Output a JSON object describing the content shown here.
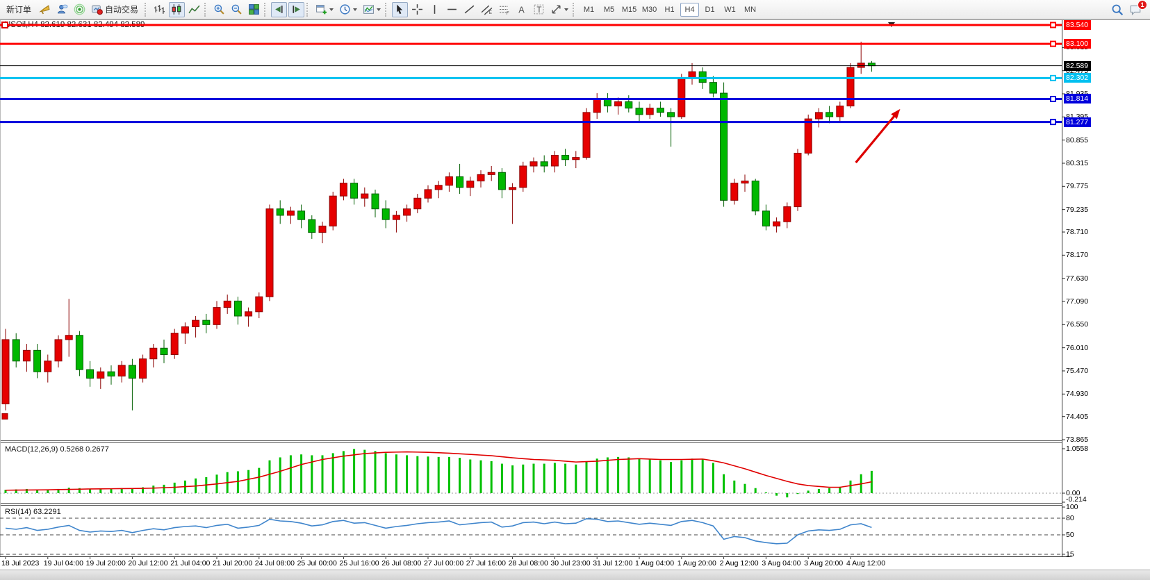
{
  "toolbar": {
    "groups": [
      {
        "name": "trade-group",
        "items": [
          {
            "name": "new-order-button",
            "label": "新订单"
          },
          {
            "name": "horn-button",
            "icon": "horn"
          },
          {
            "name": "community-button",
            "icon": "person"
          },
          {
            "name": "signals-button",
            "icon": "signal"
          },
          {
            "name": "autotrading-button",
            "icon": "autotrade",
            "label": "自动交易"
          }
        ]
      },
      {
        "name": "chart-type-group",
        "items": [
          {
            "name": "bar-chart-button",
            "icon": "bars"
          },
          {
            "name": "candlestick-button",
            "icon": "candles",
            "active": true
          },
          {
            "name": "line-chart-button",
            "icon": "line"
          }
        ]
      },
      {
        "name": "zoom-group",
        "items": [
          {
            "name": "zoom-in-button",
            "icon": "zoomin"
          },
          {
            "name": "zoom-out-button",
            "icon": "zoomout"
          },
          {
            "name": "tile-windows-button",
            "icon": "tile"
          }
        ]
      },
      {
        "name": "scroll-group",
        "items": [
          {
            "name": "auto-scroll-button",
            "icon": "autoscroll",
            "active": true
          },
          {
            "name": "chart-shift-button",
            "icon": "chartshift",
            "active": true
          }
        ]
      },
      {
        "name": "windows-group",
        "items": [
          {
            "name": "new-chart-button",
            "icon": "newchart",
            "caret": true
          },
          {
            "name": "periods-button",
            "icon": "clock",
            "caret": true
          },
          {
            "name": "templates-button",
            "icon": "template",
            "caret": true
          }
        ]
      },
      {
        "name": "objects-group",
        "items": [
          {
            "name": "cursor-button",
            "icon": "cursor",
            "active": true
          },
          {
            "name": "crosshair-button",
            "icon": "crosshair"
          },
          {
            "name": "vertical-line-button",
            "icon": "vline"
          },
          {
            "name": "horizontal-line-button",
            "icon": "hline"
          },
          {
            "name": "trendline-button",
            "icon": "trend"
          },
          {
            "name": "channel-button",
            "icon": "channel"
          },
          {
            "name": "fibonacci-button",
            "icon": "fibo"
          },
          {
            "name": "text-button",
            "icon": "textA"
          },
          {
            "name": "text-label-button",
            "icon": "textT"
          },
          {
            "name": "arrows-button",
            "icon": "shapes",
            "caret": true
          }
        ]
      }
    ],
    "timeframes": {
      "items": [
        "M1",
        "M5",
        "M15",
        "M30",
        "H1",
        "H4",
        "D1",
        "W1",
        "MN"
      ],
      "active": "H4"
    },
    "right": [
      {
        "name": "search-button",
        "icon": "search"
      },
      {
        "name": "notifications-button",
        "icon": "chat",
        "badge": "1"
      }
    ]
  },
  "chart": {
    "title": "USOil,H4 82.619 82.631 82.494 82.589",
    "macd_label": "MACD(12,26,9) 0.5268 0.2677",
    "rsi_label": "RSI(14) 63.2291"
  },
  "chart_data": {
    "type": "candlestick",
    "symbol": "USOil",
    "period": "H4",
    "ohlc_current": {
      "open": 82.619,
      "high": 82.631,
      "low": 82.494,
      "close": 82.589
    },
    "current_price": 82.589,
    "up_color": "#e60000",
    "down_color": "#00b800",
    "price_axis": {
      "visible_max": 83.653,
      "visible_min": 73.849,
      "ticks": [
        83.015,
        82.475,
        81.935,
        81.395,
        80.855,
        80.315,
        79.775,
        79.235,
        78.71,
        78.17,
        77.63,
        77.09,
        76.55,
        76.01,
        75.47,
        74.93,
        74.405,
        73.865
      ]
    },
    "hlines": [
      {
        "price": 83.54,
        "label": "83.540",
        "color": "#ff0000",
        "width": 3
      },
      {
        "price": 83.1,
        "label": "83.100",
        "color": "#ff0000",
        "width": 3
      },
      {
        "price": 82.302,
        "label": "82.302",
        "color": "#00c0f0",
        "width": 3
      },
      {
        "price": 81.814,
        "label": "81.814",
        "color": "#0000dc",
        "width": 3
      },
      {
        "price": 81.277,
        "label": "81.277",
        "color": "#0000dc",
        "width": 3
      }
    ],
    "candles": [
      [
        74.7,
        76.45,
        74.55,
        76.2
      ],
      [
        76.2,
        76.35,
        75.55,
        75.7
      ],
      [
        75.7,
        76.1,
        75.45,
        75.95
      ],
      [
        75.95,
        76.1,
        75.3,
        75.45
      ],
      [
        75.45,
        75.85,
        75.2,
        75.7
      ],
      [
        75.7,
        76.3,
        75.55,
        76.2
      ],
      [
        76.2,
        77.15,
        75.8,
        76.3
      ],
      [
        76.3,
        76.4,
        75.35,
        75.5
      ],
      [
        75.5,
        75.7,
        75.1,
        75.3
      ],
      [
        75.3,
        75.55,
        75.05,
        75.45
      ],
      [
        75.45,
        75.6,
        75.15,
        75.35
      ],
      [
        75.35,
        75.7,
        75.2,
        75.6
      ],
      [
        75.6,
        75.75,
        74.55,
        75.3
      ],
      [
        75.3,
        75.85,
        75.2,
        75.75
      ],
      [
        75.75,
        76.1,
        75.55,
        76.0
      ],
      [
        76.0,
        76.2,
        75.65,
        75.85
      ],
      [
        75.85,
        76.45,
        75.75,
        76.35
      ],
      [
        76.35,
        76.6,
        76.1,
        76.5
      ],
      [
        76.5,
        76.75,
        76.25,
        76.65
      ],
      [
        76.65,
        76.8,
        76.35,
        76.55
      ],
      [
        76.55,
        77.1,
        76.45,
        76.95
      ],
      [
        76.95,
        77.25,
        76.8,
        77.1
      ],
      [
        77.1,
        77.2,
        76.55,
        76.75
      ],
      [
        76.75,
        76.95,
        76.5,
        76.85
      ],
      [
        76.85,
        77.3,
        76.7,
        77.2
      ],
      [
        77.2,
        79.35,
        77.1,
        79.25
      ],
      [
        79.25,
        79.45,
        78.9,
        79.1
      ],
      [
        79.1,
        79.3,
        78.9,
        79.2
      ],
      [
        79.2,
        79.35,
        78.8,
        79.0
      ],
      [
        79.0,
        79.1,
        78.55,
        78.7
      ],
      [
        78.7,
        78.95,
        78.45,
        78.85
      ],
      [
        78.85,
        79.65,
        78.75,
        79.55
      ],
      [
        79.55,
        79.95,
        79.45,
        79.85
      ],
      [
        79.85,
        79.95,
        79.35,
        79.5
      ],
      [
        79.5,
        79.75,
        79.3,
        79.6
      ],
      [
        79.6,
        79.7,
        79.05,
        79.25
      ],
      [
        79.25,
        79.45,
        78.8,
        79.0
      ],
      [
        79.0,
        79.2,
        78.7,
        79.1
      ],
      [
        79.1,
        79.35,
        78.95,
        79.25
      ],
      [
        79.25,
        79.6,
        79.15,
        79.5
      ],
      [
        79.5,
        79.8,
        79.4,
        79.7
      ],
      [
        79.7,
        79.9,
        79.5,
        79.8
      ],
      [
        79.8,
        80.1,
        79.65,
        80.0
      ],
      [
        80.0,
        80.3,
        79.6,
        79.75
      ],
      [
        79.75,
        80.0,
        79.55,
        79.9
      ],
      [
        79.9,
        80.15,
        79.75,
        80.05
      ],
      [
        80.05,
        80.25,
        79.9,
        80.1
      ],
      [
        80.1,
        80.2,
        79.5,
        79.7
      ],
      [
        79.7,
        79.85,
        78.9,
        79.75
      ],
      [
        79.75,
        80.35,
        79.65,
        80.25
      ],
      [
        80.25,
        80.45,
        80.1,
        80.35
      ],
      [
        80.35,
        80.5,
        80.1,
        80.25
      ],
      [
        80.25,
        80.6,
        80.1,
        80.5
      ],
      [
        80.5,
        80.65,
        80.25,
        80.4
      ],
      [
        80.4,
        80.6,
        80.2,
        80.45
      ],
      [
        80.45,
        81.6,
        80.4,
        81.5
      ],
      [
        81.5,
        81.95,
        81.35,
        81.8
      ],
      [
        81.8,
        81.95,
        81.5,
        81.65
      ],
      [
        81.65,
        81.85,
        81.45,
        81.75
      ],
      [
        81.75,
        81.9,
        81.5,
        81.6
      ],
      [
        81.6,
        81.75,
        81.3,
        81.45
      ],
      [
        81.45,
        81.7,
        81.35,
        81.6
      ],
      [
        81.6,
        81.75,
        81.4,
        81.5
      ],
      [
        81.5,
        81.6,
        80.7,
        81.4
      ],
      [
        81.4,
        82.4,
        81.35,
        82.3
      ],
      [
        82.3,
        82.65,
        82.15,
        82.45
      ],
      [
        82.45,
        82.55,
        82.05,
        82.2
      ],
      [
        82.2,
        82.35,
        81.85,
        81.95
      ],
      [
        81.95,
        82.2,
        79.3,
        79.45
      ],
      [
        79.45,
        79.95,
        79.35,
        79.85
      ],
      [
        79.85,
        80.05,
        79.65,
        79.9
      ],
      [
        79.9,
        79.95,
        79.1,
        79.2
      ],
      [
        79.2,
        79.35,
        78.75,
        78.85
      ],
      [
        78.85,
        79.05,
        78.7,
        78.95
      ],
      [
        78.95,
        79.4,
        78.8,
        79.3
      ],
      [
        79.3,
        80.65,
        79.2,
        80.55
      ],
      [
        80.55,
        81.45,
        80.5,
        81.35
      ],
      [
        81.35,
        81.6,
        81.15,
        81.5
      ],
      [
        81.5,
        81.65,
        81.25,
        81.4
      ],
      [
        81.4,
        81.75,
        81.3,
        81.65
      ],
      [
        81.65,
        82.65,
        81.6,
        82.55
      ],
      [
        82.55,
        83.15,
        82.4,
        82.65
      ],
      [
        82.65,
        82.7,
        82.45,
        82.589
      ]
    ],
    "time_axis": {
      "bars_per_label": 4,
      "labels": [
        "18 Jul 2023",
        "19 Jul 04:00",
        "19 Jul 20:00",
        "20 Jul 12:00",
        "21 Jul 04:00",
        "21 Jul 20:00",
        "24 Jul 08:00",
        "25 Jul 00:00",
        "25 Jul 16:00",
        "26 Jul 08:00",
        "27 Jul 00:00",
        "27 Jul 16:00",
        "28 Jul 08:00",
        "30 Jul 23:00",
        "31 Jul 12:00",
        "1 Aug 04:00",
        "1 Aug 20:00",
        "2 Aug 12:00",
        "3 Aug 04:00",
        "3 Aug 20:00",
        "4 Aug 12:00"
      ]
    },
    "macd": {
      "name": "MACD(12,26,9)",
      "macd_value": 0.5268,
      "signal_value": 0.2677,
      "axis": {
        "max": 1.0558,
        "min": -0.214,
        "ticks": [
          {
            "v": 1.0558,
            "label": "1.0558"
          },
          {
            "v": 0,
            "label": "0.00"
          },
          {
            "v": -0.214,
            "label": "-0.214"
          }
        ]
      },
      "histogram_color": "#00c000",
      "signal_color": "#e00000",
      "histogram": [
        0.08,
        0.09,
        0.1,
        0.09,
        0.08,
        0.1,
        0.13,
        0.12,
        0.1,
        0.1,
        0.11,
        0.12,
        0.1,
        0.14,
        0.18,
        0.2,
        0.25,
        0.3,
        0.35,
        0.38,
        0.44,
        0.5,
        0.52,
        0.55,
        0.6,
        0.78,
        0.85,
        0.9,
        0.92,
        0.9,
        0.9,
        0.95,
        1.0,
        1.05,
        1.03,
        1.0,
        0.95,
        0.92,
        0.9,
        0.88,
        0.87,
        0.86,
        0.86,
        0.84,
        0.8,
        0.78,
        0.76,
        0.7,
        0.66,
        0.68,
        0.7,
        0.7,
        0.72,
        0.7,
        0.68,
        0.75,
        0.82,
        0.85,
        0.86,
        0.85,
        0.82,
        0.8,
        0.78,
        0.74,
        0.78,
        0.82,
        0.8,
        0.72,
        0.45,
        0.3,
        0.22,
        0.12,
        0.02,
        -0.06,
        -0.1,
        -0.02,
        0.06,
        0.1,
        0.12,
        0.15,
        0.3,
        0.45,
        0.53
      ],
      "signal": [
        0.07,
        0.073,
        0.075,
        0.078,
        0.08,
        0.085,
        0.09,
        0.095,
        0.1,
        0.102,
        0.105,
        0.108,
        0.11,
        0.115,
        0.12,
        0.13,
        0.14,
        0.155,
        0.17,
        0.195,
        0.22,
        0.25,
        0.28,
        0.33,
        0.38,
        0.45,
        0.52,
        0.6,
        0.68,
        0.74,
        0.8,
        0.84,
        0.88,
        0.91,
        0.94,
        0.955,
        0.97,
        0.975,
        0.98,
        0.975,
        0.97,
        0.96,
        0.95,
        0.935,
        0.92,
        0.905,
        0.89,
        0.865,
        0.84,
        0.82,
        0.8,
        0.79,
        0.78,
        0.76,
        0.74,
        0.75,
        0.76,
        0.78,
        0.8,
        0.81,
        0.82,
        0.81,
        0.8,
        0.8,
        0.8,
        0.805,
        0.81,
        0.77,
        0.72,
        0.65,
        0.58,
        0.5,
        0.42,
        0.35,
        0.28,
        0.22,
        0.18,
        0.16,
        0.14,
        0.14,
        0.18,
        0.22,
        0.27
      ]
    },
    "rsi": {
      "name": "RSI(14)",
      "value": 63.2291,
      "color": "#3f85cc",
      "levels": [
        80,
        50,
        15
      ],
      "axis_ticks": [
        100,
        80,
        50,
        15
      ],
      "values": [
        62,
        60,
        63,
        58,
        60,
        64,
        67,
        58,
        55,
        57,
        56,
        58,
        54,
        58,
        61,
        59,
        63,
        65,
        66,
        63,
        67,
        69,
        62,
        64,
        67,
        78,
        75,
        74,
        71,
        66,
        68,
        74,
        76,
        71,
        72,
        67,
        62,
        65,
        67,
        70,
        72,
        73,
        75,
        68,
        70,
        72,
        73,
        64,
        66,
        72,
        73,
        70,
        73,
        70,
        71,
        79,
        78,
        74,
        75,
        72,
        69,
        71,
        69,
        67,
        74,
        76,
        72,
        66,
        42,
        47,
        45,
        39,
        36,
        34,
        35,
        50,
        57,
        59,
        58,
        60,
        68,
        70,
        63.23
      ]
    },
    "annotations": [
      {
        "type": "arrow",
        "name": "red-arrow-annotation",
        "color": "#dd0000",
        "from": {
          "bar": 80.5,
          "price": 80.33
        },
        "to": {
          "bar": 84.7,
          "price": 81.58
        }
      }
    ]
  }
}
